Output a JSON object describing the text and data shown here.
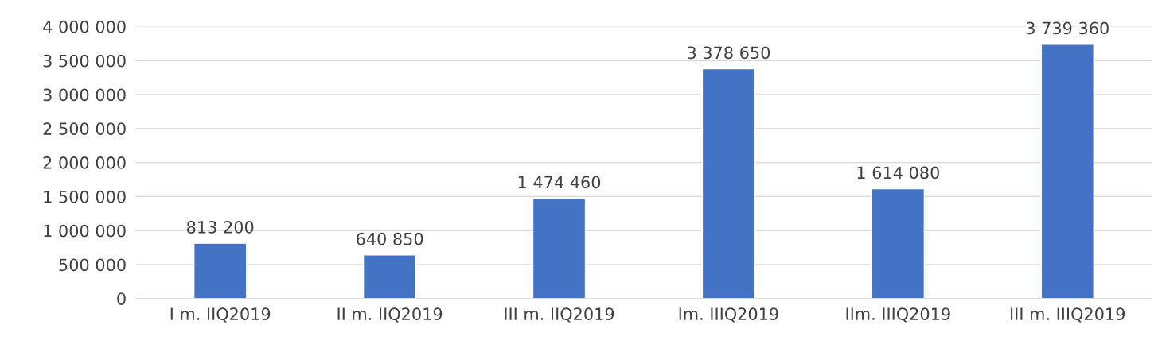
{
  "chart_data": {
    "type": "bar",
    "categories": [
      "I m. IIQ2019",
      "II m. IIQ2019",
      "III m. IIQ2019",
      "Im. IIIQ2019",
      "IIm. IIIQ2019",
      "III m. IIIQ2019"
    ],
    "values": [
      813200,
      640850,
      1474460,
      3378650,
      1614080,
      3739360
    ],
    "value_labels": [
      "813 200",
      "640 850",
      "1 474 460",
      "3 378 650",
      "1 614 080",
      "3 739 360"
    ],
    "color": "#4472c4",
    "ylim": [
      0,
      4000000
    ],
    "yticks": [
      0,
      {
        "value": 500000,
        "label": "500 000"
      },
      {
        "value": 1000000,
        "label": "1 000 000"
      },
      {
        "value": 1500000,
        "label": "1 500 000"
      },
      {
        "value": 2000000,
        "label": "2 000 000"
      },
      {
        "value": 2500000,
        "label": "2 500 000"
      },
      {
        "value": 3000000,
        "label": "3 000 000"
      },
      {
        "value": 3500000,
        "label": "3 500 000"
      },
      {
        "value": 4000000,
        "label": "4 000 000"
      }
    ],
    "grid": "y",
    "legend": false
  }
}
